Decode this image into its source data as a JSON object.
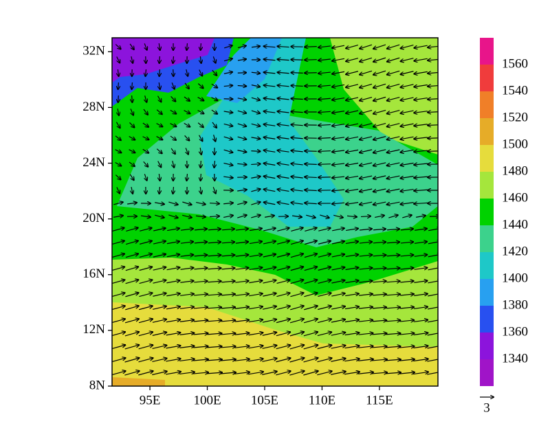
{
  "map": {
    "lat_range": [
      8,
      33
    ],
    "lon_range": [
      91.7,
      120.1
    ],
    "lat_ticks": [
      {
        "value": 8,
        "label": "8N"
      },
      {
        "value": 12,
        "label": "12N"
      },
      {
        "value": 16,
        "label": "16N"
      },
      {
        "value": 20,
        "label": "20N"
      },
      {
        "value": 24,
        "label": "24N"
      },
      {
        "value": 28,
        "label": "28N"
      },
      {
        "value": 32,
        "label": "32N"
      }
    ],
    "lon_ticks": [
      {
        "value": 95,
        "label": "95E"
      },
      {
        "value": 100,
        "label": "100E"
      },
      {
        "value": 105,
        "label": "105E"
      },
      {
        "value": 110,
        "label": "110E"
      },
      {
        "value": 115,
        "label": "115E"
      }
    ]
  },
  "colorbar": {
    "levels": [
      1340,
      1360,
      1380,
      1400,
      1420,
      1440,
      1460,
      1480,
      1500,
      1520,
      1540,
      1560
    ],
    "colors": [
      "#a014c8",
      "#8c14dc",
      "#2850f0",
      "#28a0f0",
      "#1ec8c8",
      "#3cd28c",
      "#00d200",
      "#a5e63c",
      "#e6dc3c",
      "#e6ac28",
      "#f07f28",
      "#f03c3c",
      "#e8158a"
    ]
  },
  "reference_vector": {
    "label": "3"
  }
}
